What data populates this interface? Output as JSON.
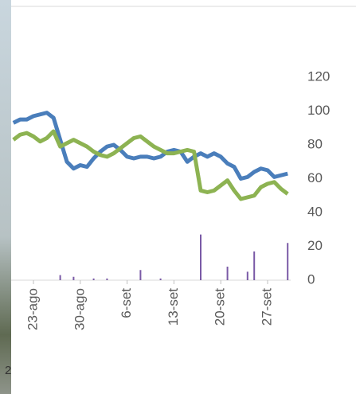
{
  "chart_data": {
    "type": "line",
    "categories": [
      null,
      null,
      null,
      "23-ago",
      null,
      null,
      null,
      null,
      null,
      null,
      "30-ago",
      null,
      null,
      null,
      null,
      null,
      null,
      "6-set",
      null,
      null,
      null,
      null,
      null,
      null,
      "13-set",
      null,
      null,
      null,
      null,
      null,
      null,
      "20-set",
      null,
      null,
      null,
      null,
      null,
      null,
      "27-set",
      null,
      null,
      null
    ],
    "series": [
      {
        "color": "#4a7ebb",
        "values": [
          93,
          95,
          95,
          97,
          98,
          99,
          96,
          83,
          70,
          66,
          68,
          67,
          72,
          76,
          79,
          80,
          77,
          73,
          72,
          73,
          73,
          72,
          73,
          76,
          77,
          76,
          70,
          73,
          75,
          73,
          75,
          73,
          69,
          67,
          60,
          61,
          64,
          66,
          65,
          61,
          62,
          63
        ]
      },
      {
        "color": "#8db352",
        "values": [
          83,
          86,
          87,
          85,
          82,
          84,
          88,
          79,
          81,
          83,
          81,
          79,
          76,
          74,
          73,
          75,
          78,
          81,
          84,
          85,
          82,
          79,
          77,
          75,
          75,
          76,
          77,
          76,
          53,
          52,
          53,
          56,
          59,
          53,
          48,
          49,
          50,
          55,
          57,
          58,
          54,
          51
        ]
      },
      {
        "type": "bar",
        "color": "#7a5aa6",
        "values": [
          null,
          null,
          null,
          null,
          null,
          null,
          null,
          3,
          null,
          2,
          null,
          null,
          1,
          null,
          1,
          null,
          null,
          null,
          null,
          6,
          null,
          null,
          1,
          null,
          null,
          null,
          null,
          null,
          27,
          null,
          null,
          null,
          8,
          null,
          null,
          5,
          17,
          null,
          null,
          null,
          null,
          22
        ]
      }
    ],
    "ylim": [
      0,
      120
    ],
    "yticks": [
      0,
      20,
      40,
      60,
      80,
      100,
      120
    ],
    "grid": false,
    "corner_text": "2"
  }
}
